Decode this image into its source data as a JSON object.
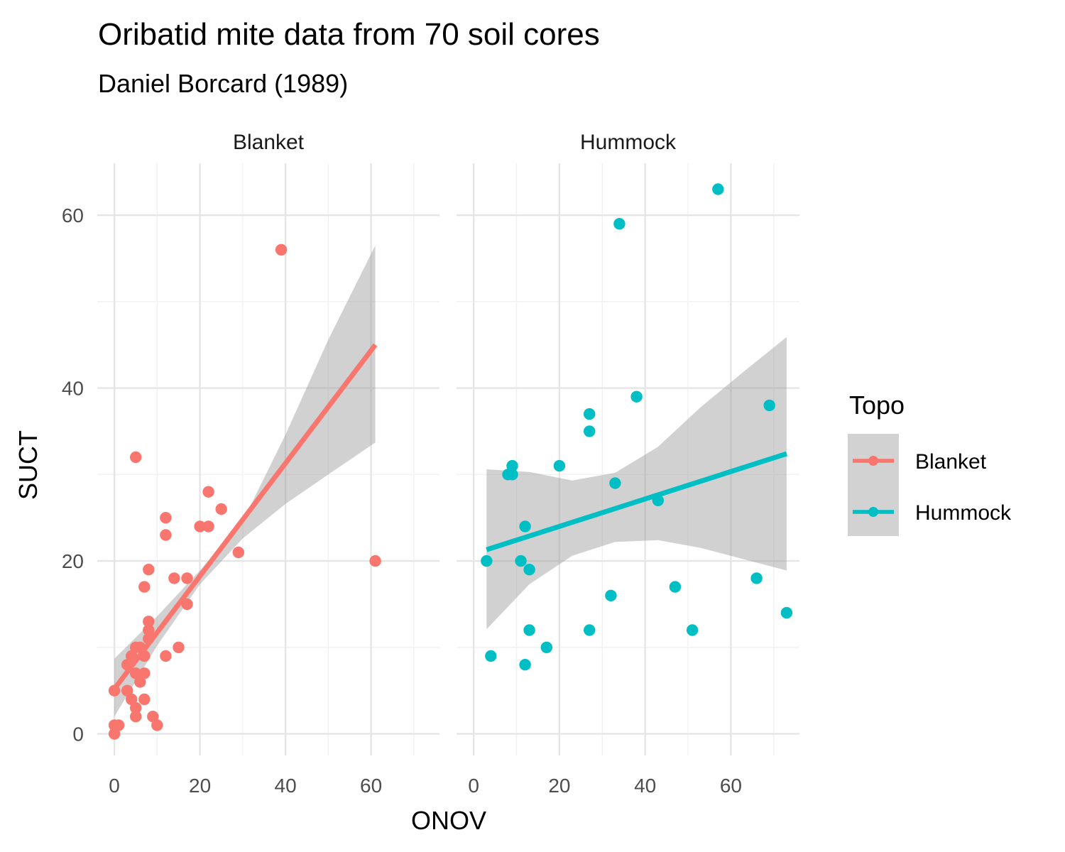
{
  "chart_data": {
    "type": "scatter",
    "title": "Oribatid mite data from 70 soil cores",
    "subtitle": "Daniel Borcard (1989)",
    "xlabel": "ONOV",
    "ylabel": "SUCT",
    "xlim": [
      -4,
      76
    ],
    "ylim": [
      -2.5,
      66
    ],
    "x_ticks": [
      0,
      20,
      40,
      60
    ],
    "y_ticks": [
      0,
      20,
      40,
      60
    ],
    "grid": true,
    "legend": {
      "title": "Topo",
      "position": "right"
    },
    "facets": [
      {
        "name": "Blanket",
        "color": "#F8766D",
        "points": [
          [
            0,
            0
          ],
          [
            0,
            1
          ],
          [
            1,
            1
          ],
          [
            0,
            5
          ],
          [
            3,
            5
          ],
          [
            3,
            8
          ],
          [
            4,
            9
          ],
          [
            4,
            4
          ],
          [
            5,
            3
          ],
          [
            5,
            2
          ],
          [
            5,
            10
          ],
          [
            5,
            7
          ],
          [
            5,
            32
          ],
          [
            6,
            10
          ],
          [
            6,
            6
          ],
          [
            7,
            7
          ],
          [
            7,
            4
          ],
          [
            7,
            9
          ],
          [
            7,
            17
          ],
          [
            8,
            13
          ],
          [
            8,
            12
          ],
          [
            8,
            11
          ],
          [
            8,
            19
          ],
          [
            9,
            2
          ],
          [
            10,
            1
          ],
          [
            12,
            25
          ],
          [
            12,
            23
          ],
          [
            12,
            9
          ],
          [
            14,
            18
          ],
          [
            15,
            10
          ],
          [
            17,
            18
          ],
          [
            17,
            15
          ],
          [
            20,
            24
          ],
          [
            22,
            24
          ],
          [
            22,
            28
          ],
          [
            25,
            26
          ],
          [
            29,
            21
          ],
          [
            39,
            56
          ],
          [
            61,
            20
          ]
        ],
        "fit": {
          "x": [
            0,
            61
          ],
          "y": [
            5.2,
            45.0
          ]
        },
        "ci": {
          "x": [
            0,
            10,
            20,
            30,
            40,
            50,
            61
          ],
          "lower": [
            2.0,
            10.2,
            17.3,
            22.6,
            26.6,
            30.0,
            33.7
          ],
          "upper": [
            8.7,
            13.6,
            18.9,
            24.6,
            34.6,
            45.6,
            56.5
          ]
        }
      },
      {
        "name": "Hummock",
        "color": "#00BFC4",
        "points": [
          [
            3,
            20
          ],
          [
            4,
            9
          ],
          [
            8,
            30
          ],
          [
            9,
            30
          ],
          [
            9,
            31
          ],
          [
            11,
            20
          ],
          [
            12,
            24
          ],
          [
            12,
            8
          ],
          [
            13,
            12
          ],
          [
            13,
            19
          ],
          [
            17,
            10
          ],
          [
            20,
            31
          ],
          [
            27,
            37
          ],
          [
            27,
            35
          ],
          [
            27,
            12
          ],
          [
            32,
            16
          ],
          [
            33,
            29
          ],
          [
            34,
            59
          ],
          [
            38,
            39
          ],
          [
            43,
            27
          ],
          [
            47,
            17
          ],
          [
            51,
            12
          ],
          [
            57,
            63
          ],
          [
            66,
            18
          ],
          [
            69,
            38
          ],
          [
            73,
            14
          ]
        ],
        "fit": {
          "x": [
            3,
            73
          ],
          "y": [
            21.3,
            32.4
          ]
        },
        "ci": {
          "x": [
            3,
            13,
            23,
            33,
            43,
            53,
            63,
            73
          ],
          "lower": [
            12.1,
            17.3,
            20.6,
            22.2,
            22.4,
            21.5,
            20.2,
            18.9
          ],
          "upper": [
            30.6,
            30.3,
            29.3,
            30.2,
            33.2,
            37.8,
            41.9,
            45.9
          ]
        }
      }
    ]
  }
}
